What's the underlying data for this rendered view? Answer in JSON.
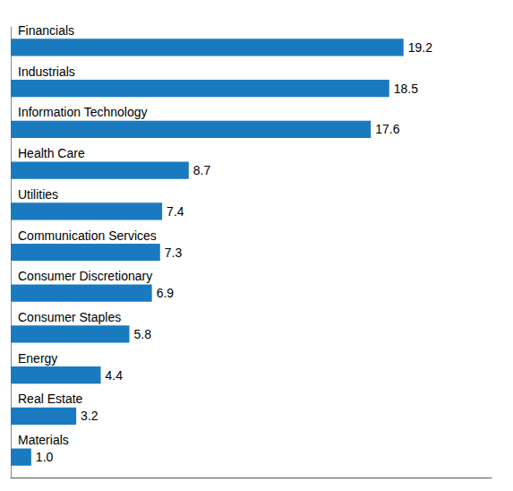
{
  "chart_data": {
    "type": "bar",
    "orientation": "horizontal",
    "categories": [
      "Financials",
      "Industrials",
      "Information Technology",
      "Health Care",
      "Utilities",
      "Communication Services",
      "Consumer Discretionary",
      "Consumer Staples",
      "Energy",
      "Real Estate",
      "Materials"
    ],
    "values": [
      19.2,
      18.5,
      17.6,
      8.7,
      7.4,
      7.3,
      6.9,
      5.8,
      4.4,
      3.2,
      1.0
    ],
    "value_labels": [
      "19.2",
      "18.5",
      "17.6",
      "8.7",
      "7.4",
      "7.3",
      "6.9",
      "5.8",
      "4.4",
      "3.2",
      "1.0"
    ],
    "color": "#1a7abf",
    "xlim": [
      0,
      23.5
    ],
    "data_labels": true,
    "tick_labels": false,
    "grid": false
  }
}
